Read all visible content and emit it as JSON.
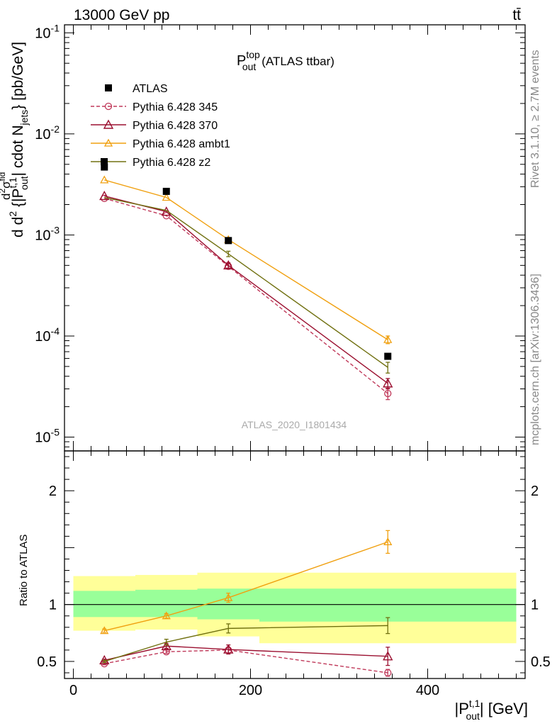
{
  "header": {
    "left": "13000 GeV pp",
    "right": "tt̄"
  },
  "plot_title": {
    "main": "P",
    "sup": "top",
    "sub": "out",
    "rest": "(ATLAS ttbar)"
  },
  "side_labels": {
    "rivet": "Rivet 3.1.10, ≥ 2.7M events",
    "mcplots": "mcplots.cern.ch [arXiv:1306.3436]"
  },
  "watermark": "ATLAS_2020_I1801434",
  "ylabel_top": "d(d²σ^fid)/(d²{|P_out^{t,1}| cdot N_jets}) [pb/GeV]",
  "ylabel_top_parts": {
    "d": "d",
    "num": "d",
    "sigma": "σ",
    "fid": "fid",
    "den_d2": "d",
    "two": "2",
    "brace_open": " {|P",
    "t1": "t,1",
    "out": "out",
    "cdot": "| cdot N",
    "jets": "jets",
    "unit": "} [pb/GeV]"
  },
  "ylabel_bottom": "Ratio to ATLAS",
  "xlabel": {
    "pre": "|P",
    "sup": "t,1",
    "sub": "out",
    "post": "| [GeV]"
  },
  "colors": {
    "atlas": "#000000",
    "p345": "#c0395a",
    "p370": "#9b1030",
    "ambt1": "#f0a010",
    "z2": "#707010",
    "band_inner": "#99ff99",
    "band_outer": "#ffff99"
  },
  "legend": [
    {
      "label": "ATLAS"
    },
    {
      "label": "Pythia 6.428 345"
    },
    {
      "label": "Pythia 6.428 370"
    },
    {
      "label": "Pythia 6.428 ambt1"
    },
    {
      "label": "Pythia 6.428 z2"
    }
  ],
  "chart_data": [
    {
      "type": "scatter",
      "title": "P_out^top (ATLAS ttbar)",
      "xlabel": "|P_out^{t,1}| [GeV]",
      "ylabel": "d(d²σ^fid)/(d²{|P_out^{t,1}| cdot N_jets}) [pb/GeV]",
      "xlim": [
        -10,
        510
      ],
      "ylim": [
        7.3e-06,
        0.12
      ],
      "log_y": true,
      "y_ticks": [
        {
          "value": 1e-05,
          "base": "10",
          "exp": "-5"
        },
        {
          "value": 0.0001,
          "base": "10",
          "exp": "-4"
        },
        {
          "value": 0.001,
          "base": "10",
          "exp": "-3"
        },
        {
          "value": 0.01,
          "base": "10",
          "exp": "-2"
        },
        {
          "value": 0.1,
          "base": "10",
          "exp": "-1"
        }
      ],
      "x_bins": [
        [
          0,
          70
        ],
        [
          70,
          140
        ],
        [
          140,
          210
        ],
        [
          210,
          500
        ]
      ],
      "x": [
        35,
        105,
        175,
        355
      ],
      "series": [
        {
          "name": "ATLAS",
          "style": "square",
          "values": [
            0.0047,
            0.0027,
            0.00088,
            6.3e-05
          ],
          "errors": [
            0,
            0,
            0,
            0
          ]
        },
        {
          "name": "Pythia 6.428 345",
          "style": "circle-dashed",
          "values": [
            0.0023,
            0.00155,
            0.00049,
            2.7e-05
          ],
          "errors": [
            0,
            0,
            3e-05,
            3.5e-06
          ]
        },
        {
          "name": "Pythia 6.428 370",
          "style": "triangle",
          "values": [
            0.00243,
            0.0017,
            0.0005,
            3.4e-05
          ],
          "errors": [
            0,
            0,
            3e-05,
            4e-06
          ]
        },
        {
          "name": "Pythia 6.428 ambt1",
          "style": "triangle",
          "values": [
            0.0035,
            0.00235,
            0.0009,
            9.2e-05
          ],
          "errors": [
            0,
            0,
            0,
            8e-06
          ]
        },
        {
          "name": "Pythia 6.428 z2",
          "style": "line",
          "values": [
            0.00235,
            0.00175,
            0.00065,
            4.9e-05
          ],
          "errors": [
            0,
            0,
            4e-05,
            6e-06
          ]
        }
      ]
    },
    {
      "type": "scatter",
      "ylabel": "Ratio to ATLAS",
      "xlabel": "|P_out^{t,1}| [GeV]",
      "xlim": [
        -10,
        510
      ],
      "ylim": [
        0.35,
        2.35
      ],
      "x_ticks": [
        0,
        200,
        400
      ],
      "y_ticks": [
        0.5,
        1,
        2
      ],
      "reference": 1,
      "bands": {
        "x_bins": [
          [
            0,
            70
          ],
          [
            70,
            140
          ],
          [
            140,
            210
          ],
          [
            210,
            500
          ]
        ],
        "inner": [
          [
            0.89,
            1.12
          ],
          [
            0.89,
            1.13
          ],
          [
            0.87,
            1.14
          ],
          [
            0.85,
            1.14
          ]
        ],
        "outer": [
          [
            0.77,
            1.25
          ],
          [
            0.78,
            1.26
          ],
          [
            0.72,
            1.28
          ],
          [
            0.66,
            1.28
          ]
        ]
      },
      "x": [
        35,
        105,
        175,
        355
      ],
      "series": [
        {
          "name": "Pythia 6.428 345",
          "values": [
            0.48,
            0.585,
            0.6,
            0.4
          ],
          "errors": [
            0.01,
            0.015,
            0.025,
            0.03
          ]
        },
        {
          "name": "Pythia 6.428 370",
          "values": [
            0.51,
            0.635,
            0.605,
            0.545
          ],
          "errors": [
            0.01,
            0.02,
            0.04,
            0.08
          ]
        },
        {
          "name": "Pythia 6.428 ambt1",
          "values": [
            0.77,
            0.9,
            1.06,
            1.55
          ],
          "errors": [
            0.015,
            0.02,
            0.04,
            0.1
          ]
        },
        {
          "name": "Pythia 6.428 z2",
          "values": [
            0.5,
            0.67,
            0.79,
            0.815
          ],
          "errors": [
            0.01,
            0.025,
            0.04,
            0.07
          ]
        }
      ]
    }
  ]
}
